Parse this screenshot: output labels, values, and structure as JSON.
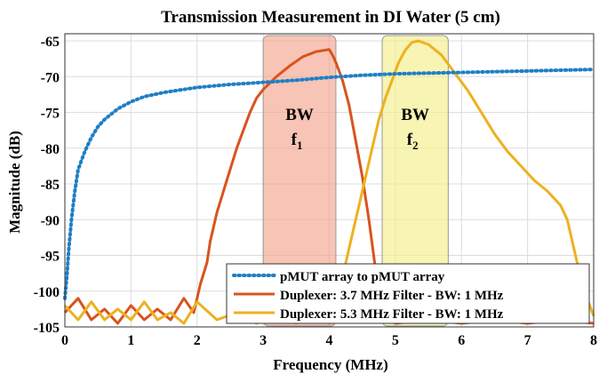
{
  "chart_data": {
    "type": "line",
    "title": "Transmission Measurement in DI Water (5 cm)",
    "xlabel": "Frequency (MHz)",
    "ylabel": "Magnitude (dB)",
    "xlim": [
      0,
      8
    ],
    "ylim": [
      -105,
      -64
    ],
    "x_ticks": [
      0,
      1,
      2,
      3,
      4,
      5,
      6,
      7,
      8
    ],
    "y_ticks": [
      -105,
      -100,
      -95,
      -90,
      -85,
      -80,
      -75,
      -70,
      -65
    ],
    "grid": true,
    "legend_position": "bottom-right",
    "bands": [
      {
        "label": "BW",
        "sub_base": "f",
        "sub_index": "1",
        "x_range": [
          3.0,
          4.1
        ],
        "color": "#f2a48f"
      },
      {
        "label": "BW",
        "sub_base": "f",
        "sub_index": "2",
        "x_range": [
          4.8,
          5.8
        ],
        "color": "#f2ee8c"
      }
    ],
    "series": [
      {
        "name": "pMUT array to pMUT array",
        "color": "#1f7fc4",
        "style": "dotted",
        "points": [
          [
            0.0,
            -101
          ],
          [
            0.03,
            -98
          ],
          [
            0.06,
            -94
          ],
          [
            0.1,
            -90
          ],
          [
            0.15,
            -86
          ],
          [
            0.2,
            -83
          ],
          [
            0.3,
            -80.5
          ],
          [
            0.4,
            -78.5
          ],
          [
            0.5,
            -77
          ],
          [
            0.6,
            -76
          ],
          [
            0.8,
            -74.5
          ],
          [
            1.0,
            -73.5
          ],
          [
            1.2,
            -72.8
          ],
          [
            1.5,
            -72.2
          ],
          [
            2.0,
            -71.5
          ],
          [
            2.5,
            -71.1
          ],
          [
            3.0,
            -70.8
          ],
          [
            3.5,
            -70.5
          ],
          [
            4.0,
            -70.1
          ],
          [
            4.5,
            -69.8
          ],
          [
            5.0,
            -69.6
          ],
          [
            5.5,
            -69.5
          ],
          [
            6.0,
            -69.4
          ],
          [
            6.5,
            -69.3
          ],
          [
            7.0,
            -69.2
          ],
          [
            7.5,
            -69.1
          ],
          [
            8.0,
            -69.0
          ]
        ]
      },
      {
        "name": "Duplexer: 3.7 MHz Filter - BW: 1 MHz",
        "color": "#d9531e",
        "style": "solid",
        "points": [
          [
            0.0,
            -103
          ],
          [
            0.2,
            -101
          ],
          [
            0.4,
            -104
          ],
          [
            0.6,
            -102.5
          ],
          [
            0.8,
            -104.5
          ],
          [
            1.0,
            -102
          ],
          [
            1.2,
            -104
          ],
          [
            1.4,
            -102.5
          ],
          [
            1.6,
            -104
          ],
          [
            1.8,
            -101
          ],
          [
            1.95,
            -103
          ],
          [
            2.05,
            -99
          ],
          [
            2.15,
            -96
          ],
          [
            2.2,
            -93
          ],
          [
            2.3,
            -89
          ],
          [
            2.4,
            -86
          ],
          [
            2.5,
            -83
          ],
          [
            2.6,
            -80
          ],
          [
            2.7,
            -77.5
          ],
          [
            2.8,
            -75
          ],
          [
            2.9,
            -73
          ],
          [
            3.0,
            -71.8
          ],
          [
            3.2,
            -70
          ],
          [
            3.4,
            -68.5
          ],
          [
            3.6,
            -67.2
          ],
          [
            3.8,
            -66.5
          ],
          [
            4.0,
            -66.2
          ],
          [
            4.05,
            -67
          ],
          [
            4.1,
            -68
          ],
          [
            4.2,
            -70.5
          ],
          [
            4.3,
            -74
          ],
          [
            4.4,
            -79
          ],
          [
            4.5,
            -84
          ],
          [
            4.6,
            -90
          ],
          [
            4.7,
            -97
          ],
          [
            4.8,
            -103
          ],
          [
            5.0,
            -104.5
          ],
          [
            5.5,
            -104
          ],
          [
            6.0,
            -104.5
          ],
          [
            6.5,
            -104
          ],
          [
            7.0,
            -104.5
          ],
          [
            7.5,
            -104
          ],
          [
            8.0,
            -104.5
          ]
        ]
      },
      {
        "name": "Duplexer: 5.3 MHz Filter - BW: 1 MHz",
        "color": "#edb120",
        "style": "solid",
        "points": [
          [
            0.0,
            -102
          ],
          [
            0.2,
            -104
          ],
          [
            0.4,
            -101.5
          ],
          [
            0.6,
            -104
          ],
          [
            0.8,
            -102.5
          ],
          [
            1.0,
            -104
          ],
          [
            1.2,
            -101.5
          ],
          [
            1.4,
            -104
          ],
          [
            1.6,
            -103
          ],
          [
            1.8,
            -104.5
          ],
          [
            2.0,
            -101.5
          ],
          [
            2.3,
            -104
          ],
          [
            2.6,
            -103
          ],
          [
            2.9,
            -104.5
          ],
          [
            3.2,
            -103.5
          ],
          [
            3.5,
            -104.5
          ],
          [
            3.8,
            -103.5
          ],
          [
            4.0,
            -104.5
          ],
          [
            4.1,
            -103
          ],
          [
            4.2,
            -100
          ],
          [
            4.25,
            -96
          ],
          [
            4.35,
            -92
          ],
          [
            4.45,
            -88
          ],
          [
            4.55,
            -84
          ],
          [
            4.65,
            -80
          ],
          [
            4.75,
            -76
          ],
          [
            4.85,
            -73
          ],
          [
            4.95,
            -70.5
          ],
          [
            5.05,
            -68
          ],
          [
            5.15,
            -66.3
          ],
          [
            5.25,
            -65.2
          ],
          [
            5.35,
            -65
          ],
          [
            5.5,
            -65.5
          ],
          [
            5.7,
            -67
          ],
          [
            5.9,
            -69.5
          ],
          [
            6.1,
            -72
          ],
          [
            6.3,
            -75
          ],
          [
            6.5,
            -78
          ],
          [
            6.7,
            -80.5
          ],
          [
            6.9,
            -82.5
          ],
          [
            7.1,
            -84.5
          ],
          [
            7.3,
            -86
          ],
          [
            7.5,
            -88
          ],
          [
            7.6,
            -90
          ],
          [
            7.7,
            -94
          ],
          [
            7.8,
            -98
          ],
          [
            7.9,
            -101
          ],
          [
            8.0,
            -103.5
          ]
        ]
      }
    ]
  }
}
